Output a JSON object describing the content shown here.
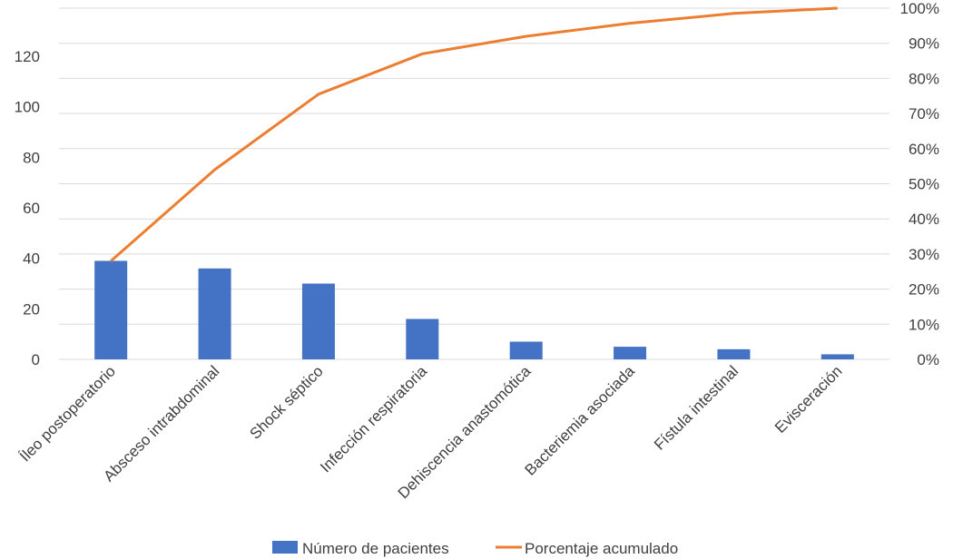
{
  "chart_data": {
    "type": "bar",
    "categories": [
      "Íleo postoperatorio",
      "Absceso intrabdominal",
      "Shock séptico",
      "Infección respiratoria",
      "Dehiscencia anastomótica",
      "Bacteriemia asociada",
      "Fístula intestinal",
      "Evisceración"
    ],
    "series": [
      {
        "name": "Número de pacientes",
        "type": "bar",
        "axis": "left",
        "color": "#4472C4",
        "values": [
          39,
          36,
          30,
          16,
          7,
          5,
          4,
          2
        ]
      },
      {
        "name": "Porcentaje acumulado",
        "type": "line",
        "axis": "right",
        "color": "#ED7D31",
        "values": [
          28,
          54,
          75.5,
          87,
          92,
          95.7,
          98.5,
          100
        ]
      }
    ],
    "left_axis": {
      "min": 0,
      "max": 120,
      "ticks": [
        0,
        20,
        40,
        60,
        80,
        100,
        120
      ],
      "tick_labels": [
        "0",
        "20",
        "40",
        "60",
        "80",
        "100",
        "120"
      ]
    },
    "right_axis": {
      "min": 0,
      "max": 100,
      "ticks": [
        0,
        10,
        20,
        30,
        40,
        50,
        60,
        70,
        80,
        90,
        100
      ],
      "tick_labels": [
        "0%",
        "10%",
        "20%",
        "30%",
        "40%",
        "50%",
        "60%",
        "70%",
        "80%",
        "90%",
        "100%"
      ]
    },
    "grid": true,
    "legend_position": "bottom",
    "gridline_color": "#D9D9D9"
  }
}
